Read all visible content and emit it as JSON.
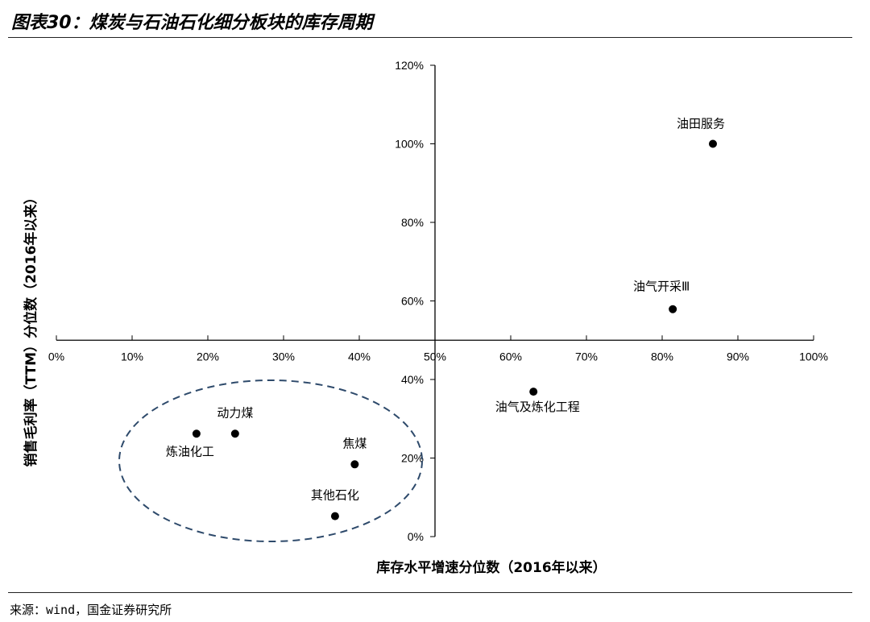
{
  "header": {
    "title": "图表30：煤炭与石油石化细分板块的库存周期"
  },
  "footer": {
    "source": "来源：wind，国金证券研究所"
  },
  "chart_data": {
    "type": "scatter",
    "title": "",
    "xlabel": "库存水平增速分位数（2016年以来）",
    "ylabel": "销售毛利率（TTM）分位数（2016年以来）",
    "xlim": [
      0,
      1
    ],
    "ylim": [
      0,
      1.2
    ],
    "x_ticks": [
      "0%",
      "10%",
      "20%",
      "30%",
      "40%",
      "50%",
      "60%",
      "70%",
      "80%",
      "90%",
      "100%"
    ],
    "y_ticks": [
      "0%",
      "20%",
      "40%",
      "60%",
      "80%",
      "100%",
      "120%"
    ],
    "cross_at": {
      "x": 0.5,
      "y": 0.5
    },
    "points": [
      {
        "label": "油田服务",
        "x": 0.867,
        "y": 1.0
      },
      {
        "label": "油气开采Ⅲ",
        "x": 0.814,
        "y": 0.579
      },
      {
        "label": "油气及炼化工程",
        "x": 0.63,
        "y": 0.369
      },
      {
        "label": "动力煤",
        "x": 0.236,
        "y": 0.262
      },
      {
        "label": "炼油化工",
        "x": 0.185,
        "y": 0.262
      },
      {
        "label": "焦煤",
        "x": 0.394,
        "y": 0.184
      },
      {
        "label": "其他石化",
        "x": 0.368,
        "y": 0.052
      }
    ],
    "grid": false,
    "legend": "none",
    "marker_color": "#000000",
    "highlight_ellipse_color": "#2e4a6b"
  }
}
